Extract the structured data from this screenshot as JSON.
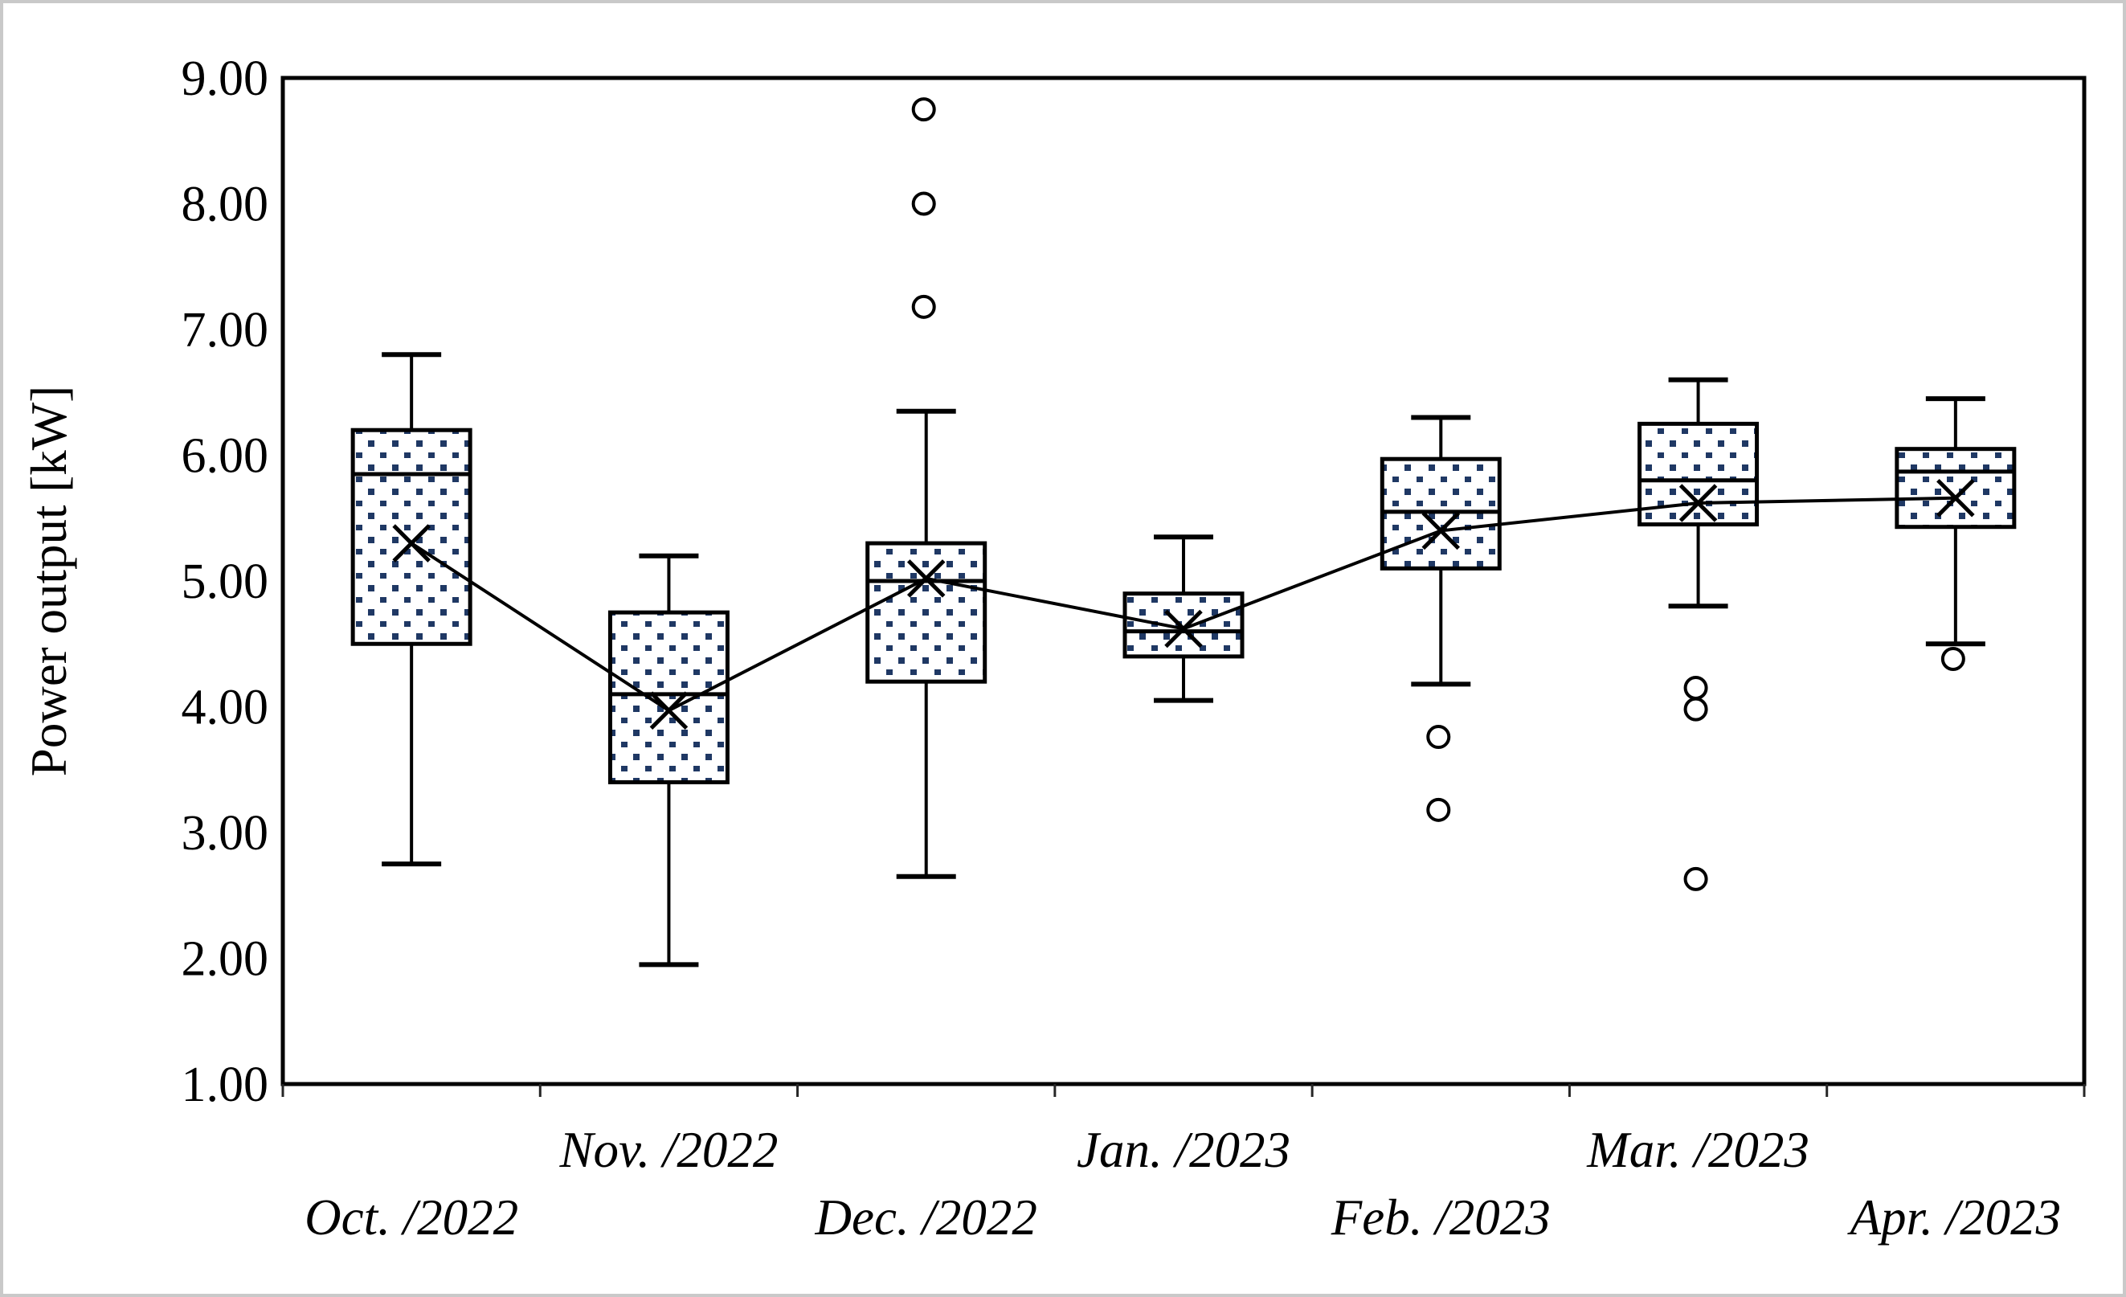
{
  "chart_data": {
    "type": "box",
    "title": "",
    "ylabel": "Power output [kW]",
    "xlabel": "",
    "ylim": [
      1.0,
      9.0
    ],
    "y_tick_step": 1.0,
    "y_tick_labels": [
      "9.00",
      "8.00",
      "7.00",
      "6.00",
      "5.00",
      "4.00",
      "3.00",
      "2.00",
      "1.00"
    ],
    "grid": false,
    "legend": "none",
    "categories": [
      "Oct. /2022",
      "Nov. /2022",
      "Dec. /2022",
      "Jan. /2023",
      "Feb. /2023",
      "Mar. /2023",
      "Apr. /2023"
    ],
    "x_label_rows": [
      "lower",
      "upper",
      "lower",
      "upper",
      "lower",
      "upper",
      "lower"
    ],
    "series": [
      {
        "name": "Oct. /2022",
        "whisker_low": 2.75,
        "q1": 4.5,
        "median": 5.85,
        "q3": 6.2,
        "whisker_high": 6.8,
        "mean": 5.3,
        "outliers": []
      },
      {
        "name": "Nov. /2022",
        "whisker_low": 1.95,
        "q1": 3.4,
        "median": 4.1,
        "q3": 4.75,
        "whisker_high": 5.2,
        "mean": 3.97,
        "outliers": []
      },
      {
        "name": "Dec. /2022",
        "whisker_low": 2.65,
        "q1": 4.2,
        "median": 5.0,
        "q3": 5.3,
        "whisker_high": 6.35,
        "mean": 5.02,
        "outliers": [
          8.75,
          8.0,
          7.18
        ]
      },
      {
        "name": "Jan. /2023",
        "whisker_low": 4.05,
        "q1": 4.4,
        "median": 4.6,
        "q3": 4.9,
        "whisker_high": 5.35,
        "mean": 4.62,
        "outliers": []
      },
      {
        "name": "Feb. /2023",
        "whisker_low": 4.18,
        "q1": 5.1,
        "median": 5.55,
        "q3": 5.97,
        "whisker_high": 6.3,
        "mean": 5.4,
        "outliers": [
          3.76,
          3.18
        ]
      },
      {
        "name": "Mar. /2023",
        "whisker_low": 4.8,
        "q1": 5.45,
        "median": 5.8,
        "q3": 6.25,
        "whisker_high": 6.6,
        "mean": 5.62,
        "outliers": [
          4.15,
          3.98,
          2.63
        ]
      },
      {
        "name": "Apr. /2023",
        "whisker_low": 4.5,
        "q1": 5.43,
        "median": 5.87,
        "q3": 6.05,
        "whisker_high": 6.45,
        "mean": 5.66,
        "outliers": [
          4.38
        ]
      }
    ],
    "mean_line": [
      5.3,
      3.97,
      5.02,
      4.62,
      5.4,
      5.62,
      5.66
    ],
    "marker": "x-for-mean, hollow-circle-for-outlier",
    "box_fill": "white-with-navy-dot-pattern"
  },
  "style": {
    "line_color": "#000000",
    "dot_pattern_color": "#1f3864",
    "frame_border_color": "#c9c9c9",
    "plot_background": "#ffffff"
  }
}
